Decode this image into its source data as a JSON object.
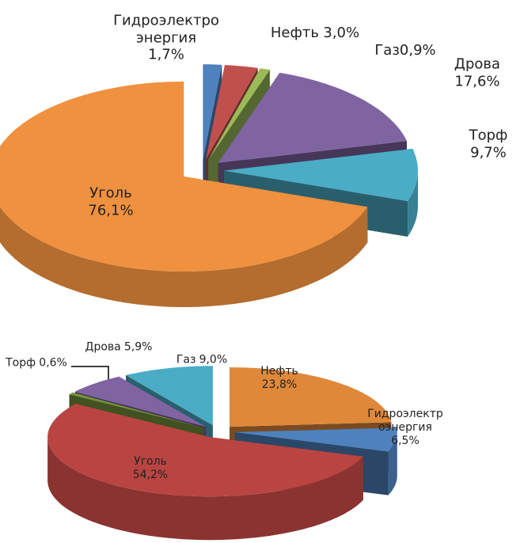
{
  "chart_data": [
    {
      "type": "pie",
      "categories": [
        "Гидроэлектроэнергия",
        "Нефть",
        "Газ",
        "Дрова",
        "Торф",
        "Уголь"
      ],
      "values": [
        1.7,
        3.0,
        0.9,
        17.6,
        9.7,
        76.1
      ],
      "value_labels": [
        "1,7%",
        "3,0%",
        "0,9%",
        "17,6%",
        "9,7%",
        "76,1%"
      ],
      "colors": [
        "#4f81bd",
        "#c0504d",
        "#9bbb59",
        "#8064a2",
        "#4bacc6",
        "#f0913f"
      ]
    },
    {
      "type": "pie",
      "categories": [
        "Нефть",
        "Гидроэлектроэнергия",
        "Уголь",
        "Торф",
        "Дрова",
        "Газ"
      ],
      "values": [
        23.8,
        6.5,
        54.2,
        0.6,
        5.9,
        9.0
      ],
      "value_labels": [
        "23,8%",
        "6,5%",
        "54,2%",
        "0,6%",
        "5,9%",
        "9,0%"
      ],
      "colors": [
        "#e0883a",
        "#4f81bd",
        "#b94441",
        "#77933c",
        "#8064a2",
        "#4bacc6"
      ]
    }
  ]
}
